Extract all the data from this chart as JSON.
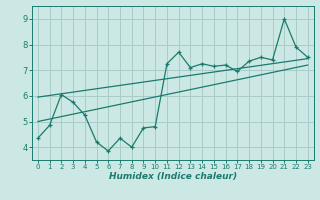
{
  "xlabel": "Humidex (Indice chaleur)",
  "x_values": [
    0,
    1,
    2,
    3,
    4,
    5,
    6,
    7,
    8,
    9,
    10,
    11,
    12,
    13,
    14,
    15,
    16,
    17,
    18,
    19,
    20,
    21,
    22,
    23
  ],
  "line1": [
    4.35,
    4.85,
    6.05,
    5.75,
    5.25,
    4.2,
    3.85,
    4.35,
    4.0,
    4.75,
    4.8,
    7.25,
    7.7,
    7.1,
    7.25,
    7.15,
    7.2,
    6.95,
    7.35,
    7.5,
    7.4,
    9.0,
    7.9,
    7.5
  ],
  "line2_x": [
    0,
    23
  ],
  "line2_y": [
    5.95,
    7.45
  ],
  "line3_x": [
    0,
    23
  ],
  "line3_y": [
    5.0,
    7.2
  ],
  "color": "#1a7a6e",
  "bg_color": "#cce8e4",
  "grid_color": "#a8ccc8",
  "ylim": [
    3.5,
    9.5
  ],
  "xlim": [
    -0.5,
    23.5
  ],
  "yticks": [
    4,
    5,
    6,
    7,
    8,
    9
  ],
  "xticks": [
    0,
    1,
    2,
    3,
    4,
    5,
    6,
    7,
    8,
    9,
    10,
    11,
    12,
    13,
    14,
    15,
    16,
    17,
    18,
    19,
    20,
    21,
    22,
    23
  ]
}
